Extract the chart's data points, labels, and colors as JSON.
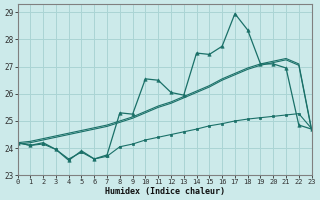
{
  "xlabel": "Humidex (Indice chaleur)",
  "bg_color": "#cceaea",
  "grid_color": "#aad4d4",
  "line_color": "#1a7068",
  "xlim": [
    0,
    23
  ],
  "ylim": [
    23,
    29.3
  ],
  "yticks": [
    23,
    24,
    25,
    26,
    27,
    28,
    29
  ],
  "xticks": [
    0,
    1,
    2,
    3,
    4,
    5,
    6,
    7,
    8,
    9,
    10,
    11,
    12,
    13,
    14,
    15,
    16,
    17,
    18,
    19,
    20,
    21,
    22,
    23
  ],
  "x": [
    0,
    1,
    2,
    3,
    4,
    5,
    6,
    7,
    8,
    9,
    10,
    11,
    12,
    13,
    14,
    15,
    16,
    17,
    18,
    19,
    20,
    21,
    22,
    23
  ],
  "y_main": [
    24.2,
    24.1,
    24.2,
    23.95,
    23.55,
    23.9,
    23.6,
    23.75,
    25.3,
    25.25,
    26.55,
    26.5,
    26.05,
    25.95,
    27.5,
    27.45,
    27.75,
    28.95,
    28.35,
    27.1,
    27.1,
    26.95,
    24.85,
    24.7
  ],
  "y_trend_upper": [
    24.2,
    24.25,
    24.35,
    24.45,
    24.55,
    24.65,
    24.75,
    24.85,
    25.0,
    25.15,
    25.35,
    25.55,
    25.7,
    25.9,
    26.1,
    26.3,
    26.55,
    26.75,
    26.95,
    27.1,
    27.2,
    27.3,
    27.1,
    24.7
  ],
  "y_trend_lower": [
    24.15,
    24.2,
    24.3,
    24.4,
    24.5,
    24.6,
    24.7,
    24.8,
    24.95,
    25.1,
    25.3,
    25.5,
    25.65,
    25.85,
    26.05,
    26.25,
    26.5,
    26.7,
    26.9,
    27.05,
    27.15,
    27.25,
    27.05,
    24.65
  ],
  "y_low": [
    24.2,
    24.1,
    24.15,
    23.95,
    23.6,
    23.85,
    23.6,
    23.7,
    24.05,
    24.15,
    24.3,
    24.4,
    24.5,
    24.6,
    24.7,
    24.82,
    24.9,
    25.0,
    25.07,
    25.12,
    25.17,
    25.22,
    25.27,
    24.72
  ]
}
